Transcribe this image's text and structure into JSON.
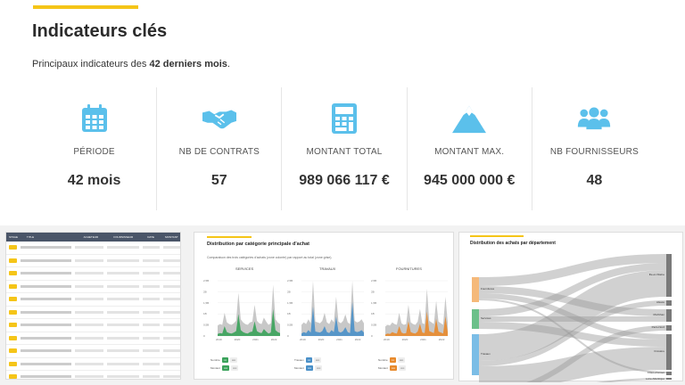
{
  "header": {
    "title": "Indicateurs clés",
    "subtitle_prefix": "Principaux indicateurs des ",
    "subtitle_bold": "42 derniers mois",
    "subtitle_suffix": "."
  },
  "kpis": [
    {
      "icon": "calendar-icon",
      "label": "PÉRIODE",
      "value": "42 mois"
    },
    {
      "icon": "handshake-icon",
      "label": "NB DE CONTRATS",
      "value": "57"
    },
    {
      "icon": "calculator-icon",
      "label": "MONTANT TOTAL",
      "value": "989 066 117 €"
    },
    {
      "icon": "mountain-icon",
      "label": "MONTANT MAX.",
      "value": "945 000 000 €"
    },
    {
      "icon": "users-icon",
      "label": "NB FOURNISSEURS",
      "value": "48"
    }
  ],
  "colors": {
    "accent": "#f5c518",
    "icon_blue": "#5bc0eb",
    "services_green": "#3aa25a",
    "travaux_blue": "#4a90c8",
    "fournitures_orange": "#e88a2c"
  },
  "table_panel": {
    "headers": [
      "STAGE",
      "TITLE",
      "ACHETEUR",
      "FOURNISSEUR",
      "DATE",
      "MONTANT"
    ],
    "row_count": 11
  },
  "category_panel": {
    "title": "Distribution par catégorie principale d'achat",
    "description": "Comparaison des trois catégories d'achats (zone colorée) par rapport au total (zone grise).",
    "charts": [
      {
        "name": "SERVICES",
        "color": "#3aa25a",
        "years": [
          "2019",
          "2020",
          "2021",
          "2022"
        ],
        "legend_label": "Services"
      },
      {
        "name": "TRAVAUX",
        "color": "#4a90c8",
        "years": [
          "2019",
          "2020",
          "2021",
          "2022"
        ],
        "legend_label": "Travaux"
      },
      {
        "name": "FOURNITURES",
        "color": "#e88a2c",
        "years": [
          "2019",
          "2020",
          "2021",
          "2022"
        ],
        "legend_label": "Fournitures"
      }
    ],
    "yticks": [
      "2,5B",
      "2B",
      "1,5B",
      "1B",
      "0,5B",
      "0"
    ],
    "legend_rows": [
      "Nombre",
      "Montant"
    ]
  },
  "sankey_panel": {
    "title": "Distribution des achats par département",
    "left_nodes": [
      "Fournitures",
      "Services",
      "Travaux"
    ],
    "right_nodes": [
      "Ille-et-Vilaine",
      "Alsace",
      "Morbihan",
      "Paris-Nord",
      "Finistère",
      "Côtes-d'Armor",
      "Loire-Atlantique"
    ]
  }
}
